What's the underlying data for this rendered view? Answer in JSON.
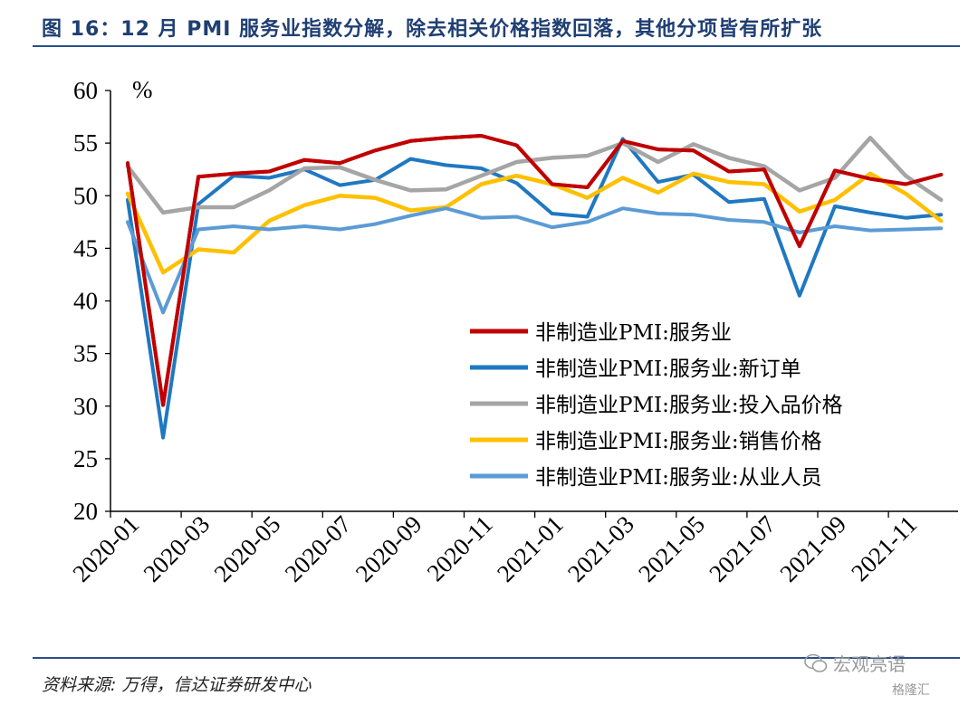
{
  "figure": {
    "title": "图 16：12 月 PMI 服务业指数分解，除去相关价格指数回落，其他分项皆有所扩张",
    "source": "资料来源: 万得，信达证券研发中心",
    "watermark": "宏观亮语",
    "watermark2": "格隆汇"
  },
  "chart_data": {
    "type": "line",
    "title": "",
    "xlabel": "",
    "ylabel": "%",
    "ylim": [
      20,
      60
    ],
    "yticks": [
      20,
      25,
      30,
      35,
      40,
      45,
      50,
      55,
      60
    ],
    "grid": false,
    "legend_position": "center-right",
    "x": [
      "2020-01",
      "2020-02",
      "2020-03",
      "2020-04",
      "2020-05",
      "2020-06",
      "2020-07",
      "2020-08",
      "2020-09",
      "2020-10",
      "2020-11",
      "2020-12",
      "2021-01",
      "2021-02",
      "2021-03",
      "2021-04",
      "2021-05",
      "2021-06",
      "2021-07",
      "2021-08",
      "2021-09",
      "2021-10",
      "2021-11",
      "2021-12"
    ],
    "xtick_labels": [
      "2020-01",
      "2020-03",
      "2020-05",
      "2020-07",
      "2020-09",
      "2020-11",
      "2021-01",
      "2021-03",
      "2021-05",
      "2021-07",
      "2021-09",
      "2021-11"
    ],
    "series": [
      {
        "name": "非制造业PMI:服务业",
        "color": "#c00000",
        "values": [
          53.1,
          30.1,
          51.8,
          52.1,
          52.3,
          53.4,
          53.1,
          54.3,
          55.2,
          55.5,
          55.7,
          54.8,
          51.1,
          50.8,
          55.2,
          54.4,
          54.3,
          52.3,
          52.5,
          45.2,
          52.4,
          51.6,
          51.1,
          52.0
        ]
      },
      {
        "name": "非制造业PMI:服务业:新订单",
        "color": "#1f78c1",
        "values": [
          49.6,
          27.0,
          49.2,
          51.9,
          51.7,
          52.5,
          51.0,
          51.5,
          53.5,
          52.9,
          52.6,
          51.2,
          48.3,
          48.0,
          55.4,
          51.3,
          52.0,
          49.4,
          49.7,
          40.5,
          49.0,
          48.4,
          47.9,
          48.2
        ]
      },
      {
        "name": "非制造业PMI:服务业:投入品价格",
        "color": "#a5a5a5",
        "values": [
          52.8,
          48.4,
          48.9,
          48.9,
          50.5,
          52.6,
          52.7,
          51.5,
          50.5,
          50.6,
          51.9,
          53.2,
          53.6,
          53.8,
          55.0,
          53.2,
          54.9,
          53.6,
          52.8,
          50.5,
          51.7,
          55.5,
          51.9,
          49.6
        ]
      },
      {
        "name": "非制造业PMI:服务业:销售价格",
        "color": "#ffc000",
        "values": [
          50.2,
          42.7,
          44.9,
          44.6,
          47.6,
          49.1,
          50.0,
          49.8,
          48.6,
          48.9,
          51.1,
          51.9,
          51.1,
          49.8,
          51.7,
          50.3,
          52.1,
          51.3,
          51.1,
          48.5,
          49.6,
          52.1,
          50.2,
          47.6
        ]
      },
      {
        "name": "非制造业PMI:服务业:从业人员",
        "color": "#5b9bd5",
        "values": [
          47.5,
          38.9,
          46.8,
          47.1,
          46.8,
          47.1,
          46.8,
          47.3,
          48.1,
          48.8,
          47.9,
          48.0,
          47.0,
          47.5,
          48.8,
          48.3,
          48.2,
          47.7,
          47.5,
          46.5,
          47.1,
          46.7,
          46.8,
          46.9
        ]
      }
    ]
  }
}
